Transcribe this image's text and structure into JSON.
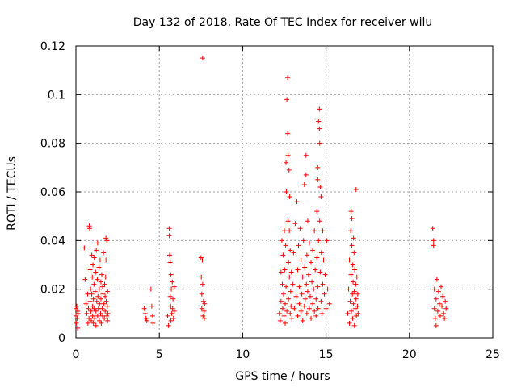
{
  "chart_data": {
    "type": "scatter",
    "title": "Day 132 of 2018, Rate Of TEC Index for receiver wilu",
    "xlabel": "GPS time / hours",
    "ylabel": "ROTI / TECUs",
    "xlim": [
      0,
      25
    ],
    "ylim": [
      0,
      0.12
    ],
    "x_ticks": [
      0,
      5,
      10,
      15,
      20,
      25
    ],
    "x_tick_labels": [
      "0",
      "5",
      "10",
      "15",
      "20",
      "25"
    ],
    "y_ticks": [
      0,
      0.02,
      0.04,
      0.06,
      0.08,
      0.1,
      0.12
    ],
    "y_tick_labels": [
      "0",
      "0.02",
      "0.04",
      "0.06",
      "0.08",
      "0.1",
      "0.12"
    ],
    "grid": true,
    "marker": "+",
    "series_color": "#ff0000",
    "series": [
      {
        "name": "ROTI",
        "points": [
          [
            0.0,
            0.012
          ],
          [
            0.0,
            0.009
          ],
          [
            0.02,
            0.006
          ],
          [
            0.05,
            0.013
          ],
          [
            0.08,
            0.008
          ],
          [
            0.1,
            0.011
          ],
          [
            0.1,
            0.004
          ],
          [
            0.12,
            0.01
          ],
          [
            0.5,
            0.037
          ],
          [
            0.55,
            0.024
          ],
          [
            0.6,
            0.014
          ],
          [
            0.65,
            0.01
          ],
          [
            0.7,
            0.018
          ],
          [
            0.72,
            0.006
          ],
          [
            0.75,
            0.012
          ],
          [
            0.78,
            0.008
          ],
          [
            0.8,
            0.046
          ],
          [
            0.82,
            0.045
          ],
          [
            0.85,
            0.028
          ],
          [
            0.85,
            0.015
          ],
          [
            0.88,
            0.02
          ],
          [
            0.9,
            0.011
          ],
          [
            0.92,
            0.007
          ],
          [
            0.95,
            0.034
          ],
          [
            0.95,
            0.018
          ],
          [
            0.98,
            0.025
          ],
          [
            1.0,
            0.013
          ],
          [
            1.0,
            0.009
          ],
          [
            1.02,
            0.03
          ],
          [
            1.05,
            0.016
          ],
          [
            1.05,
            0.006
          ],
          [
            1.08,
            0.022
          ],
          [
            1.1,
            0.012
          ],
          [
            1.1,
            0.033
          ],
          [
            1.12,
            0.008
          ],
          [
            1.15,
            0.019
          ],
          [
            1.18,
            0.027
          ],
          [
            1.2,
            0.011
          ],
          [
            1.2,
            0.005
          ],
          [
            1.22,
            0.036
          ],
          [
            1.25,
            0.015
          ],
          [
            1.28,
            0.024
          ],
          [
            1.3,
            0.009
          ],
          [
            1.3,
            0.039
          ],
          [
            1.32,
            0.017
          ],
          [
            1.35,
            0.012
          ],
          [
            1.38,
            0.029
          ],
          [
            1.4,
            0.007
          ],
          [
            1.4,
            0.02
          ],
          [
            1.42,
            0.014
          ],
          [
            1.45,
            0.032
          ],
          [
            1.48,
            0.01
          ],
          [
            1.5,
            0.023
          ],
          [
            1.5,
            0.016
          ],
          [
            1.52,
            0.006
          ],
          [
            1.55,
            0.026
          ],
          [
            1.58,
            0.012
          ],
          [
            1.6,
            0.021
          ],
          [
            1.6,
            0.009
          ],
          [
            1.62,
            0.018
          ],
          [
            1.65,
            0.035
          ],
          [
            1.68,
            0.014
          ],
          [
            1.7,
            0.008
          ],
          [
            1.72,
            0.022
          ],
          [
            1.75,
            0.011
          ],
          [
            1.75,
            0.017
          ],
          [
            1.78,
            0.025
          ],
          [
            1.8,
            0.041
          ],
          [
            1.8,
            0.032
          ],
          [
            1.82,
            0.015
          ],
          [
            1.85,
            0.009
          ],
          [
            1.85,
            0.04
          ],
          [
            1.88,
            0.013
          ],
          [
            1.9,
            0.019
          ],
          [
            1.9,
            0.007
          ],
          [
            1.92,
            0.01
          ],
          [
            4.1,
            0.012
          ],
          [
            4.15,
            0.01
          ],
          [
            4.2,
            0.008
          ],
          [
            4.25,
            0.007
          ],
          [
            4.5,
            0.02
          ],
          [
            4.55,
            0.013
          ],
          [
            4.6,
            0.009
          ],
          [
            4.62,
            0.006
          ],
          [
            5.5,
            0.009
          ],
          [
            5.55,
            0.005
          ],
          [
            5.6,
            0.045
          ],
          [
            5.6,
            0.042
          ],
          [
            5.62,
            0.034
          ],
          [
            5.65,
            0.031
          ],
          [
            5.65,
            0.017
          ],
          [
            5.68,
            0.013
          ],
          [
            5.7,
            0.026
          ],
          [
            5.7,
            0.007
          ],
          [
            5.72,
            0.02
          ],
          [
            5.75,
            0.01
          ],
          [
            5.78,
            0.023
          ],
          [
            5.8,
            0.012
          ],
          [
            5.82,
            0.016
          ],
          [
            5.85,
            0.008
          ],
          [
            5.9,
            0.021
          ],
          [
            5.9,
            0.011
          ],
          [
            7.5,
            0.033
          ],
          [
            7.52,
            0.025
          ],
          [
            7.55,
            0.018
          ],
          [
            7.55,
            0.012
          ],
          [
            7.58,
            0.032
          ],
          [
            7.6,
            0.115
          ],
          [
            7.6,
            0.022
          ],
          [
            7.62,
            0.009
          ],
          [
            7.65,
            0.015
          ],
          [
            7.68,
            0.011
          ],
          [
            7.7,
            0.008
          ],
          [
            7.72,
            0.014
          ],
          [
            12.2,
            0.01
          ],
          [
            12.25,
            0.007
          ],
          [
            12.3,
            0.027
          ],
          [
            12.3,
            0.015
          ],
          [
            12.35,
            0.04
          ],
          [
            12.38,
            0.022
          ],
          [
            12.4,
            0.012
          ],
          [
            12.42,
            0.034
          ],
          [
            12.45,
            0.018
          ],
          [
            12.48,
            0.009
          ],
          [
            12.5,
            0.044
          ],
          [
            12.52,
            0.028
          ],
          [
            12.55,
            0.014
          ],
          [
            12.55,
            0.006
          ],
          [
            12.58,
            0.038
          ],
          [
            12.6,
            0.021
          ],
          [
            12.6,
            0.072
          ],
          [
            12.62,
            0.06
          ],
          [
            12.65,
            0.011
          ],
          [
            12.65,
            0.098
          ],
          [
            12.7,
            0.107
          ],
          [
            12.7,
            0.084
          ],
          [
            12.72,
            0.075
          ],
          [
            12.72,
            0.048
          ],
          [
            12.75,
            0.031
          ],
          [
            12.75,
            0.016
          ],
          [
            12.78,
            0.069
          ],
          [
            12.8,
            0.044
          ],
          [
            12.8,
            0.025
          ],
          [
            12.82,
            0.058
          ],
          [
            12.85,
            0.01
          ],
          [
            12.85,
            0.036
          ],
          [
            12.88,
            0.019
          ],
          [
            12.9,
            0.013
          ],
          [
            12.92,
            0.027
          ],
          [
            12.95,
            0.008
          ],
          [
            13.0,
            0.022
          ],
          [
            13.05,
            0.035
          ],
          [
            13.1,
            0.012
          ],
          [
            13.15,
            0.047
          ],
          [
            13.2,
            0.017
          ],
          [
            13.25,
            0.056
          ],
          [
            13.3,
            0.009
          ],
          [
            13.3,
            0.028
          ],
          [
            13.35,
            0.038
          ],
          [
            13.4,
            0.014
          ],
          [
            13.4,
            0.021
          ],
          [
            13.45,
            0.045
          ],
          [
            13.5,
            0.011
          ],
          [
            13.5,
            0.032
          ],
          [
            13.55,
            0.018
          ],
          [
            13.6,
            0.025
          ],
          [
            13.6,
            0.007
          ],
          [
            13.65,
            0.04
          ],
          [
            13.7,
            0.013
          ],
          [
            13.7,
            0.063
          ],
          [
            13.72,
            0.029
          ],
          [
            13.75,
            0.016
          ],
          [
            13.8,
            0.075
          ],
          [
            13.8,
            0.067
          ],
          [
            13.82,
            0.022
          ],
          [
            13.85,
            0.01
          ],
          [
            13.85,
            0.034
          ],
          [
            13.9,
            0.048
          ],
          [
            13.9,
            0.019
          ],
          [
            13.95,
            0.026
          ],
          [
            14.0,
            0.012
          ],
          [
            14.0,
            0.039
          ],
          [
            14.05,
            0.017
          ],
          [
            14.1,
            0.031
          ],
          [
            14.1,
            0.008
          ],
          [
            14.15,
            0.023
          ],
          [
            14.2,
            0.014
          ],
          [
            14.2,
            0.036
          ],
          [
            14.25,
            0.02
          ],
          [
            14.3,
            0.011
          ],
          [
            14.3,
            0.044
          ],
          [
            14.35,
            0.028
          ],
          [
            14.4,
            0.016
          ],
          [
            14.4,
            0.009
          ],
          [
            14.45,
            0.052
          ],
          [
            14.45,
            0.033
          ],
          [
            14.5,
            0.07
          ],
          [
            14.5,
            0.065
          ],
          [
            14.5,
            0.021
          ],
          [
            14.52,
            0.012
          ],
          [
            14.55,
            0.04
          ],
          [
            14.55,
            0.089
          ],
          [
            14.6,
            0.094
          ],
          [
            14.6,
            0.086
          ],
          [
            14.62,
            0.08
          ],
          [
            14.62,
            0.048
          ],
          [
            14.65,
            0.062
          ],
          [
            14.65,
            0.027
          ],
          [
            14.7,
            0.058
          ],
          [
            14.7,
            0.015
          ],
          [
            14.72,
            0.035
          ],
          [
            14.75,
            0.01
          ],
          [
            14.8,
            0.044
          ],
          [
            14.8,
            0.022
          ],
          [
            14.85,
            0.032
          ],
          [
            14.9,
            0.018
          ],
          [
            14.95,
            0.026
          ],
          [
            15.0,
            0.012
          ],
          [
            15.05,
            0.04
          ],
          [
            15.1,
            0.02
          ],
          [
            15.2,
            0.014
          ],
          [
            16.3,
            0.01
          ],
          [
            16.35,
            0.02
          ],
          [
            16.4,
            0.006
          ],
          [
            16.4,
            0.032
          ],
          [
            16.45,
            0.015
          ],
          [
            16.48,
            0.044
          ],
          [
            16.5,
            0.052
          ],
          [
            16.5,
            0.026
          ],
          [
            16.52,
            0.011
          ],
          [
            16.55,
            0.049
          ],
          [
            16.55,
            0.038
          ],
          [
            16.58,
            0.018
          ],
          [
            16.6,
            0.03
          ],
          [
            16.6,
            0.008
          ],
          [
            16.62,
            0.023
          ],
          [
            16.65,
            0.041
          ],
          [
            16.65,
            0.014
          ],
          [
            16.68,
            0.035
          ],
          [
            16.7,
            0.019
          ],
          [
            16.7,
            0.005
          ],
          [
            16.72,
            0.028
          ],
          [
            16.75,
            0.012
          ],
          [
            16.78,
            0.022
          ],
          [
            16.8,
            0.061
          ],
          [
            16.8,
            0.016
          ],
          [
            16.82,
            0.009
          ],
          [
            16.85,
            0.025
          ],
          [
            16.88,
            0.013
          ],
          [
            16.9,
            0.018
          ],
          [
            16.92,
            0.01
          ],
          [
            21.4,
            0.045
          ],
          [
            21.45,
            0.04
          ],
          [
            21.45,
            0.038
          ],
          [
            21.5,
            0.02
          ],
          [
            21.5,
            0.012
          ],
          [
            21.55,
            0.008
          ],
          [
            21.6,
            0.016
          ],
          [
            21.6,
            0.005
          ],
          [
            21.65,
            0.024
          ],
          [
            21.7,
            0.011
          ],
          [
            21.75,
            0.019
          ],
          [
            21.8,
            0.014
          ],
          [
            21.85,
            0.009
          ],
          [
            21.9,
            0.021
          ],
          [
            21.95,
            0.013
          ],
          [
            22.0,
            0.017
          ],
          [
            22.05,
            0.01
          ],
          [
            22.1,
            0.008
          ],
          [
            22.15,
            0.015
          ],
          [
            22.2,
            0.012
          ]
        ]
      }
    ]
  }
}
